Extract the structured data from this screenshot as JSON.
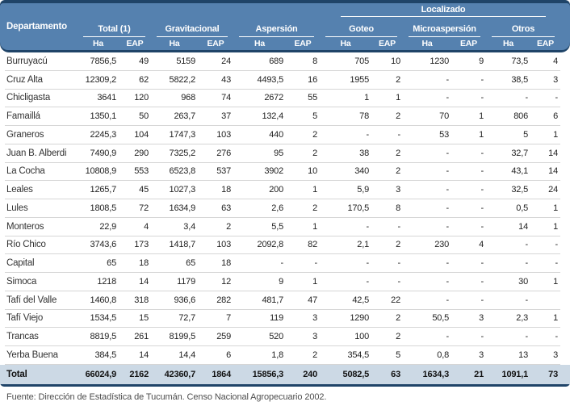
{
  "chart_data": {
    "type": "table",
    "title": "",
    "header": {
      "department": "Departamento",
      "localizado": "Localizado",
      "groups": [
        {
          "label": "Total (1)"
        },
        {
          "label": "Gravitacional"
        },
        {
          "label": "Aspersión"
        },
        {
          "label": "Goteo",
          "parent": "Localizado"
        },
        {
          "label": "Microaspersión",
          "parent": "Localizado"
        },
        {
          "label": "Otros",
          "parent": "Localizado"
        }
      ],
      "sub": [
        "Ha",
        "EAP"
      ]
    },
    "rows": [
      {
        "dept": "Burruyacú",
        "values": [
          "7856,5",
          "49",
          "5159",
          "24",
          "689",
          "8",
          "705",
          "10",
          "1230",
          "9",
          "73,5",
          "4"
        ]
      },
      {
        "dept": "Cruz Alta",
        "values": [
          "12309,2",
          "62",
          "5822,2",
          "43",
          "4493,5",
          "16",
          "1955",
          "2",
          "-",
          "-",
          "38,5",
          "3"
        ]
      },
      {
        "dept": "Chicligasta",
        "values": [
          "3641",
          "120",
          "968",
          "74",
          "2672",
          "55",
          "1",
          "1",
          "-",
          "-",
          "-",
          "-"
        ]
      },
      {
        "dept": "Famaillá",
        "values": [
          "1350,1",
          "50",
          "263,7",
          "37",
          "132,4",
          "5",
          "78",
          "2",
          "70",
          "1",
          "806",
          "6"
        ]
      },
      {
        "dept": "Graneros",
        "values": [
          "2245,3",
          "104",
          "1747,3",
          "103",
          "440",
          "2",
          "-",
          "-",
          "53",
          "1",
          "5",
          "1"
        ]
      },
      {
        "dept": "Juan B. Alberdi",
        "values": [
          "7490,9",
          "290",
          "7325,2",
          "276",
          "95",
          "2",
          "38",
          "2",
          "-",
          "-",
          "32,7",
          "14"
        ]
      },
      {
        "dept": "La Cocha",
        "values": [
          "10808,9",
          "553",
          "6523,8",
          "537",
          "3902",
          "10",
          "340",
          "2",
          "-",
          "-",
          "43,1",
          "14"
        ]
      },
      {
        "dept": "Leales",
        "values": [
          "1265,7",
          "45",
          "1027,3",
          "18",
          "200",
          "1",
          "5,9",
          "3",
          "-",
          "-",
          "32,5",
          "24"
        ]
      },
      {
        "dept": "Lules",
        "values": [
          "1808,5",
          "72",
          "1634,9",
          "63",
          "2,6",
          "2",
          "170,5",
          "8",
          "-",
          "-",
          "0,5",
          "1"
        ]
      },
      {
        "dept": "Monteros",
        "values": [
          "22,9",
          "4",
          "3,4",
          "2",
          "5,5",
          "1",
          "-",
          "-",
          "-",
          "-",
          "14",
          "1"
        ]
      },
      {
        "dept": "Río Chico",
        "values": [
          "3743,6",
          "173",
          "1418,7",
          "103",
          "2092,8",
          "82",
          "2,1",
          "2",
          "230",
          "4",
          "-",
          "-"
        ]
      },
      {
        "dept": "Capital",
        "values": [
          "65",
          "18",
          "65",
          "18",
          "-",
          "-",
          "-",
          "-",
          "-",
          "-",
          "-",
          "-"
        ]
      },
      {
        "dept": "Simoca",
        "values": [
          "1218",
          "14",
          "1179",
          "12",
          "9",
          "1",
          "-",
          "-",
          "-",
          "-",
          "30",
          "1"
        ]
      },
      {
        "dept": "Tafí del Valle",
        "values": [
          "1460,8",
          "318",
          "936,6",
          "282",
          "481,7",
          "47",
          "42,5",
          "22",
          "-",
          "-",
          "-",
          ""
        ]
      },
      {
        "dept": "Tafí Viejo",
        "values": [
          "1534,5",
          "15",
          "72,7",
          "7",
          "119",
          "3",
          "1290",
          "2",
          "50,5",
          "3",
          "2,3",
          "1"
        ]
      },
      {
        "dept": "Trancas",
        "values": [
          "8819,5",
          "261",
          "8199,5",
          "259",
          "520",
          "3",
          "100",
          "2",
          "-",
          "-",
          "-",
          "-"
        ]
      },
      {
        "dept": "Yerba Buena",
        "values": [
          "384,5",
          "14",
          "14,4",
          "6",
          "1,8",
          "2",
          "354,5",
          "5",
          "0,8",
          "3",
          "13",
          "3"
        ]
      }
    ],
    "total": {
      "dept": "Total",
      "values": [
        "66024,9",
        "2162",
        "42360,7",
        "1864",
        "15856,3",
        "240",
        "5082,5",
        "63",
        "1634,3",
        "21",
        "1091,1",
        "73"
      ]
    },
    "footnote": "Fuente: Dirección de Estadística de Tucumán. Censo Nacional Agropecuario 2002."
  },
  "colors": {
    "header_blue": "#5581af",
    "band_navy": "#1f4468",
    "total_row_bg": "#ccd9e5",
    "row_line": "#d6d6d6"
  }
}
